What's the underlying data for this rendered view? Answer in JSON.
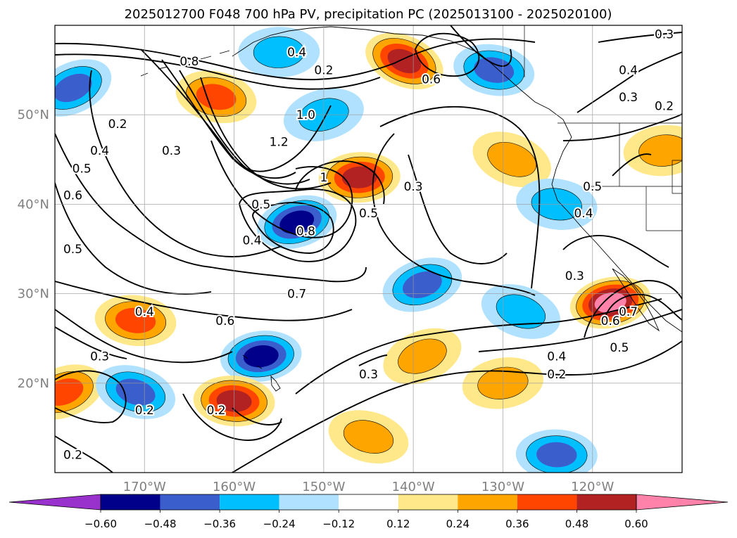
{
  "chart_data": {
    "type": "map-contour",
    "title": "2025012700 F048 700 hPa PV, precipitation PC (2025013100 - 2025020100)",
    "projection": "equirectangular",
    "lon_range": [
      -180,
      -110
    ],
    "lat_range": [
      10,
      60
    ],
    "lon_ticks": [
      {
        "lon": -170,
        "label": "170°W"
      },
      {
        "lon": -160,
        "label": "160°W"
      },
      {
        "lon": -150,
        "label": "150°W"
      },
      {
        "lon": -140,
        "label": "140°W"
      },
      {
        "lon": -130,
        "label": "130°W"
      },
      {
        "lon": -120,
        "label": "120°W"
      }
    ],
    "lat_ticks": [
      {
        "lat": 20,
        "label": "20°N"
      },
      {
        "lat": 30,
        "label": "30°N"
      },
      {
        "lat": 40,
        "label": "40°N"
      },
      {
        "lat": 50,
        "label": "50°N"
      }
    ],
    "grid": true,
    "colorbar": {
      "placement": "bottom",
      "extend": "both",
      "boundaries": [
        -0.6,
        -0.48,
        -0.36,
        -0.24,
        -0.12,
        0.12,
        0.24,
        0.36,
        0.48,
        0.6
      ],
      "tick_labels": [
        "−0.60",
        "−0.48",
        "−0.36",
        "−0.24",
        "−0.12",
        "0.12",
        "0.24",
        "0.36",
        "0.48",
        "0.60"
      ],
      "colors": [
        "#9932cc",
        "#00008b",
        "#3a5fcd",
        "#00bfff",
        "#b0e2ff",
        "#ffffff",
        "#ffe88a",
        "#ffa500",
        "#ff4500",
        "#b22222",
        "#ff82ab"
      ]
    },
    "filled_anomalies": [
      {
        "lon": -178,
        "lat": 53,
        "value": -0.45
      },
      {
        "lon": -162,
        "lat": 52,
        "value": 0.46
      },
      {
        "lon": -155,
        "lat": 57,
        "value": -0.3
      },
      {
        "lon": -150,
        "lat": 50,
        "value": -0.3
      },
      {
        "lon": -141,
        "lat": 56,
        "value": 0.48
      },
      {
        "lon": -131,
        "lat": 55,
        "value": -0.45
      },
      {
        "lon": -146,
        "lat": 43,
        "value": 0.5
      },
      {
        "lon": -153,
        "lat": 38,
        "value": -0.55
      },
      {
        "lon": -129,
        "lat": 45,
        "value": 0.3
      },
      {
        "lon": -124,
        "lat": 40,
        "value": -0.3
      },
      {
        "lon": -112,
        "lat": 46,
        "value": 0.35
      },
      {
        "lon": -139,
        "lat": 31,
        "value": -0.4
      },
      {
        "lon": -128,
        "lat": 28,
        "value": -0.25
      },
      {
        "lon": -171,
        "lat": 27,
        "value": 0.4
      },
      {
        "lon": -157,
        "lat": 23,
        "value": -0.5
      },
      {
        "lon": -179,
        "lat": 19,
        "value": 0.4
      },
      {
        "lon": -171,
        "lat": 19,
        "value": -0.45
      },
      {
        "lon": -160,
        "lat": 18,
        "value": 0.55
      },
      {
        "lon": -130,
        "lat": 20,
        "value": 0.3
      },
      {
        "lon": -139,
        "lat": 23,
        "value": 0.35
      },
      {
        "lon": -145,
        "lat": 14,
        "value": 0.3
      },
      {
        "lon": -124,
        "lat": 12,
        "value": -0.4
      },
      {
        "lon": -118,
        "lat": 29,
        "value": 0.6
      }
    ],
    "contour_labels": [
      {
        "lon": -150,
        "lat": 55,
        "text": "0.2"
      },
      {
        "lon": -153,
        "lat": 57,
        "text": "0.4"
      },
      {
        "lon": -165,
        "lat": 56,
        "text": "0.8"
      },
      {
        "lon": -173,
        "lat": 49,
        "text": "0.2"
      },
      {
        "lon": -175,
        "lat": 46,
        "text": "0.4"
      },
      {
        "lon": -177,
        "lat": 44,
        "text": "0.5"
      },
      {
        "lon": -178,
        "lat": 41,
        "text": "0.6"
      },
      {
        "lon": -178,
        "lat": 35,
        "text": "0.5"
      },
      {
        "lon": -167,
        "lat": 46,
        "text": "0.3"
      },
      {
        "lon": -152,
        "lat": 50,
        "text": "1.0"
      },
      {
        "lon": -155,
        "lat": 47,
        "text": "1.2"
      },
      {
        "lon": -150,
        "lat": 43,
        "text": "1"
      },
      {
        "lon": -157,
        "lat": 40,
        "text": "0.5"
      },
      {
        "lon": -152,
        "lat": 37,
        "text": "0.8"
      },
      {
        "lon": -158,
        "lat": 36,
        "text": "0.4"
      },
      {
        "lon": -145,
        "lat": 39,
        "text": "0.5"
      },
      {
        "lon": -140,
        "lat": 42,
        "text": "0.3"
      },
      {
        "lon": -138,
        "lat": 54,
        "text": "0.6"
      },
      {
        "lon": -121,
        "lat": 39,
        "text": "0.4"
      },
      {
        "lon": -120,
        "lat": 42,
        "text": "0.5"
      },
      {
        "lon": -122,
        "lat": 32,
        "text": "0.3"
      },
      {
        "lon": -116,
        "lat": 55,
        "text": "0.4"
      },
      {
        "lon": -116,
        "lat": 52,
        "text": "0.3"
      },
      {
        "lon": -112,
        "lat": 51,
        "text": "0.2"
      },
      {
        "lon": -112,
        "lat": 59,
        "text": "0.3"
      },
      {
        "lon": -153,
        "lat": 30,
        "text": "0.7"
      },
      {
        "lon": -161,
        "lat": 27,
        "text": "0.6"
      },
      {
        "lon": -170,
        "lat": 28,
        "text": "0.4"
      },
      {
        "lon": -175,
        "lat": 23,
        "text": "0.3"
      },
      {
        "lon": -145,
        "lat": 21,
        "text": "0.3"
      },
      {
        "lon": -170,
        "lat": 17,
        "text": "0.2"
      },
      {
        "lon": -178,
        "lat": 12,
        "text": "0.2"
      },
      {
        "lon": -162,
        "lat": 17,
        "text": "0.2"
      },
      {
        "lon": -124,
        "lat": 23,
        "text": "0.4"
      },
      {
        "lon": -124,
        "lat": 21,
        "text": "0.2"
      },
      {
        "lon": -117,
        "lat": 24,
        "text": "0.5"
      },
      {
        "lon": -118,
        "lat": 27,
        "text": "0.6"
      },
      {
        "lon": -116,
        "lat": 28,
        "text": "0.7"
      }
    ]
  }
}
